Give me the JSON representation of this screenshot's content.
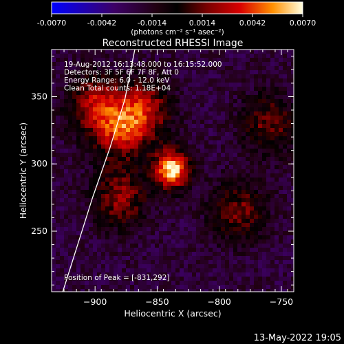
{
  "chart_data": {
    "type": "heatmap",
    "title": "Reconstructed RHESSI Image",
    "colorbar": {
      "ticks": [
        "-0.0070",
        "-0.0042",
        "-0.0014",
        "0.0014",
        "0.0042",
        "0.0070"
      ],
      "unit_label": "(photons cm⁻² s⁻¹ asec⁻²)",
      "range": [
        -0.007,
        0.007
      ]
    },
    "xlabel": "Heliocentric X (arcsec)",
    "ylabel": "Heliocentric Y (arcsec)",
    "xlim": [
      -935,
      -740
    ],
    "ylim": [
      205,
      385
    ],
    "xticks": [
      -900,
      -850,
      -800,
      -750
    ],
    "yticks": [
      250,
      300,
      350
    ],
    "info_lines": [
      "19-Aug-2012 16:13:48.000 to 16:15:52.000",
      "Detectors: 3F 5F 6F 7F 8F, Att 0",
      "Energy Range: 6.0 - 12.0 keV",
      "Clean      Total counts: 1.18E+04"
    ],
    "peak_label": "Position of Peak = [-831,292]",
    "peak": [
      -831,
      292
    ],
    "sources": [
      {
        "x": -838,
        "y": 296,
        "value": 0.007
      },
      {
        "x": -880,
        "y": 325,
        "value": 0.003
      },
      {
        "x": -900,
        "y": 345,
        "value": 0.0025
      },
      {
        "x": -860,
        "y": 340,
        "value": 0.0026
      },
      {
        "x": -880,
        "y": 275,
        "value": 0.0022
      },
      {
        "x": -785,
        "y": 265,
        "value": 0.0018
      },
      {
        "x": -760,
        "y": 330,
        "value": 0.0016
      }
    ],
    "limb": [
      [
        -926,
        205
      ],
      [
        -914,
        240
      ],
      [
        -902,
        275
      ],
      [
        -888,
        312
      ],
      [
        -876,
        348
      ],
      [
        -868,
        385
      ]
    ]
  },
  "footer_timestamp": "13-May-2022 19:05",
  "colors": {
    "background": "#000000",
    "line": "#ffffff"
  }
}
